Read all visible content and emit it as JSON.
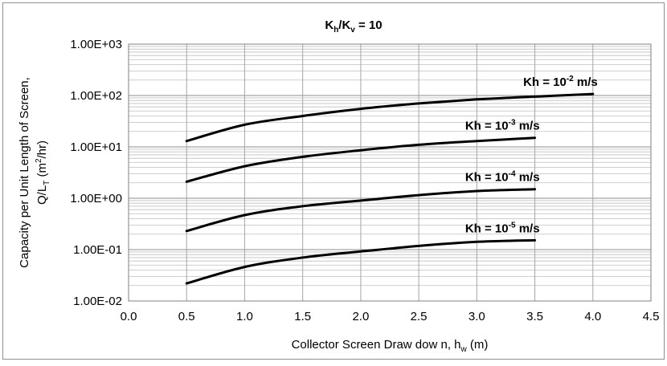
{
  "chart_data": {
    "type": "line",
    "title": {
      "base": "K",
      "sub1": "h",
      "mid": "/K",
      "sub2": "v",
      "tail": " = 10"
    },
    "xlabel": {
      "main": "Collector Screen Draw dow n, h",
      "sub": "w",
      "tail": " (m)"
    },
    "ylabel": {
      "line1": "Capacity per Unit Length of Screen,",
      "line2": {
        "pre": "Q/L",
        "sub": "T",
        "mid": " (m",
        "sup": "2",
        "post": "/hr)"
      }
    },
    "xlim": [
      0,
      4.5
    ],
    "ylim": [
      0.01,
      1000
    ],
    "yscale": "log",
    "grid": true,
    "x_ticks": [
      "0.0",
      "0.5",
      "1.0",
      "1.5",
      "2.0",
      "2.5",
      "3.0",
      "3.5",
      "4.0",
      "4.5"
    ],
    "y_ticks": [
      "1.00E-02",
      "1.00E-01",
      "1.00E+00",
      "1.00E+01",
      "1.00E+02",
      "1.00E+03"
    ],
    "series": [
      {
        "name": {
          "pre": "Kh = 10",
          "sup": "-2",
          "post": " m/s"
        },
        "x": [
          0.5,
          1.0,
          1.5,
          2.0,
          2.5,
          3.0,
          3.5,
          4.0
        ],
        "y": [
          13,
          27,
          40,
          55,
          70,
          84,
          95,
          107
        ]
      },
      {
        "name": {
          "pre": "Kh = 10",
          "sup": "-3",
          "post": " m/s"
        },
        "x": [
          0.5,
          1.0,
          1.5,
          2.0,
          2.5,
          3.0,
          3.5
        ],
        "y": [
          2.1,
          4.2,
          6.4,
          8.6,
          11,
          13,
          15
        ]
      },
      {
        "name": {
          "pre": "Kh = 10",
          "sup": "-4",
          "post": " m/s"
        },
        "x": [
          0.5,
          1.0,
          1.5,
          2.0,
          2.5,
          3.0,
          3.5
        ],
        "y": [
          0.23,
          0.47,
          0.7,
          0.9,
          1.15,
          1.38,
          1.5
        ]
      },
      {
        "name": {
          "pre": "Kh = 10",
          "sup": "-5",
          "post": " m/s"
        },
        "x": [
          0.5,
          1.0,
          1.5,
          2.0,
          2.5,
          3.0,
          3.5
        ],
        "y": [
          0.022,
          0.046,
          0.07,
          0.092,
          0.118,
          0.142,
          0.152
        ]
      }
    ],
    "colors": {
      "line": "#000000",
      "grid": "#bfbfbf",
      "frame": "#808080"
    }
  }
}
